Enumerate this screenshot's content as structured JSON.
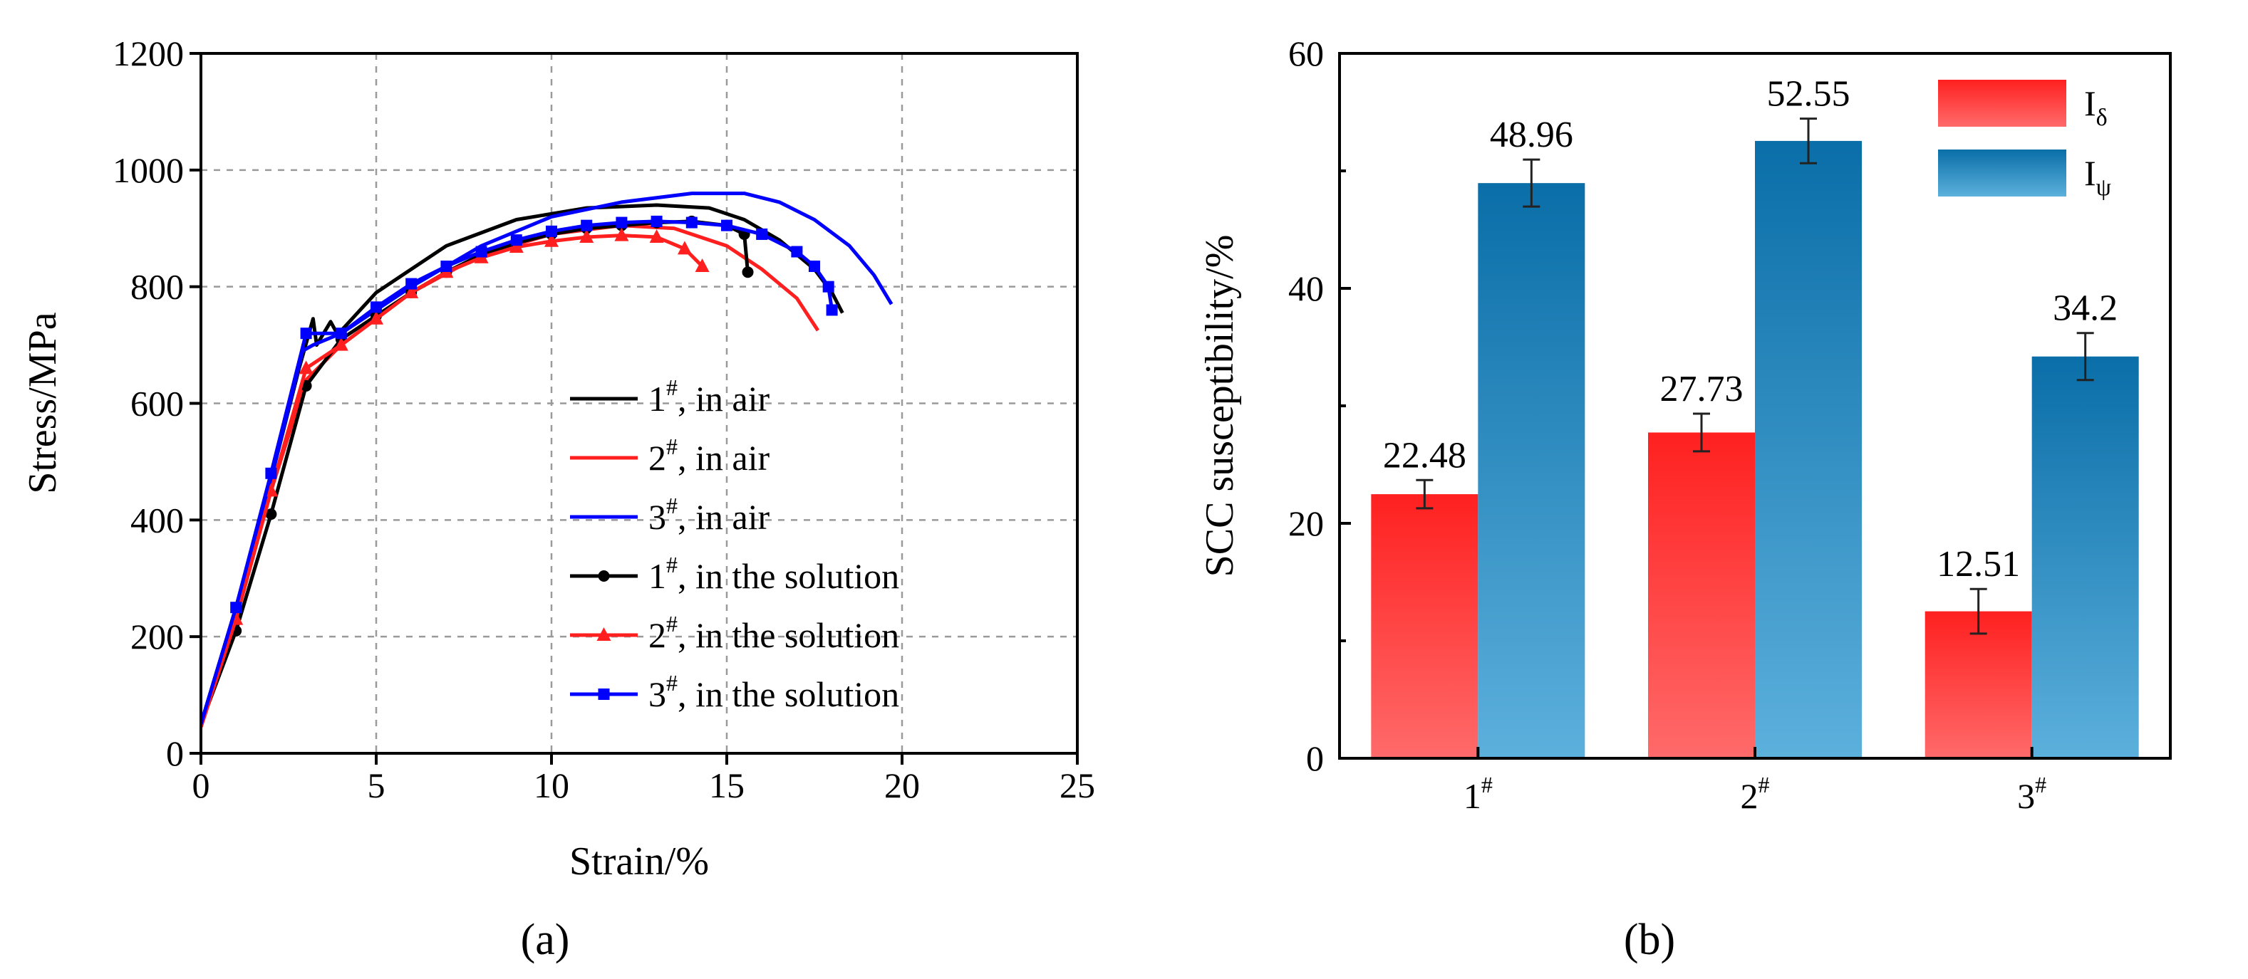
{
  "colors": {
    "black": "#000000",
    "red": "#ff1f1f",
    "blue": "#0000ff",
    "bar_red_top": "#ff2020",
    "bar_red_bottom": "#ff6a6a",
    "bar_blue_top": "#0a6ea8",
    "bar_blue_bottom": "#5cb0dc"
  },
  "chart_data": [
    {
      "panel_label": "(a)",
      "type": "line",
      "xlabel": "Strain/%",
      "ylabel": "Stress/MPa",
      "xlim": [
        0,
        25
      ],
      "ylim": [
        0,
        1200
      ],
      "xticks": [
        "0",
        "5",
        "10",
        "15",
        "20",
        "25"
      ],
      "yticks": [
        "0",
        "200",
        "400",
        "600",
        "800",
        "1000",
        "1200"
      ],
      "grid": true,
      "legend_position": "bottom-right",
      "series": [
        {
          "name": "1#, in air",
          "label_main": "1",
          "label_sup": "#",
          "label_rest": ", in air",
          "color": "#000000",
          "marker": "none",
          "x": [
            0,
            1,
            2,
            2.8,
            3.2,
            3.3,
            3.5,
            3.7,
            3.9,
            5,
            7,
            9,
            11,
            13,
            14.5,
            15.5,
            16.5,
            17.5,
            18,
            18.3
          ],
          "y": [
            50,
            250,
            470,
            660,
            745,
            700,
            720,
            740,
            718,
            790,
            870,
            915,
            935,
            940,
            935,
            915,
            880,
            830,
            790,
            755
          ]
        },
        {
          "name": "2#, in air",
          "label_main": "2",
          "label_sup": "#",
          "label_rest": ", in air",
          "color": "#ff1f1f",
          "marker": "none",
          "x": [
            0,
            1,
            2,
            3,
            4,
            6,
            8,
            10,
            12,
            13.5,
            15,
            16,
            17,
            17.6
          ],
          "y": [
            45,
            230,
            450,
            640,
            700,
            790,
            855,
            890,
            905,
            900,
            870,
            830,
            780,
            725
          ]
        },
        {
          "name": "3#, in air",
          "label_main": "3",
          "label_sup": "#",
          "label_rest": ", in air",
          "color": "#0000ff",
          "marker": "none",
          "x": [
            0,
            1,
            2,
            2.9,
            3.2,
            4,
            6,
            8,
            10,
            12,
            14,
            15.5,
            16.5,
            17.5,
            18.5,
            19.2,
            19.7
          ],
          "y": [
            50,
            250,
            470,
            690,
            700,
            720,
            800,
            870,
            920,
            945,
            960,
            960,
            945,
            915,
            870,
            820,
            770
          ]
        },
        {
          "name": "1#, in the solution",
          "label_main": "1",
          "label_sup": "#",
          "label_rest": ", in the solution",
          "color": "#000000",
          "marker": "circle",
          "x": [
            0,
            1,
            2,
            3,
            4,
            5,
            6,
            7,
            8,
            9,
            10,
            11,
            12,
            13,
            14,
            15,
            15.5,
            15.6
          ],
          "y": [
            50,
            210,
            410,
            630,
            710,
            750,
            790,
            825,
            855,
            875,
            890,
            900,
            905,
            910,
            912,
            905,
            890,
            825
          ]
        },
        {
          "name": "2#, in the solution",
          "label_main": "2",
          "label_sup": "#",
          "label_rest": ", in the solution",
          "color": "#ff1f1f",
          "marker": "triangle",
          "x": [
            0,
            1,
            2,
            3,
            4,
            5,
            6,
            7,
            8,
            9,
            10,
            11,
            12,
            13,
            13.8,
            14.3
          ],
          "y": [
            45,
            230,
            450,
            660,
            700,
            745,
            790,
            825,
            850,
            868,
            878,
            885,
            888,
            885,
            865,
            835
          ]
        },
        {
          "name": "3#, in the solution",
          "label_main": "3",
          "label_sup": "#",
          "label_rest": ", in the solution",
          "color": "#0000ff",
          "marker": "square",
          "x": [
            0,
            1,
            2,
            3,
            4,
            5,
            6,
            7,
            8,
            9,
            10,
            11,
            12,
            13,
            14,
            15,
            16,
            17,
            17.5,
            17.9,
            18
          ],
          "y": [
            50,
            250,
            480,
            720,
            720,
            765,
            805,
            835,
            860,
            880,
            895,
            905,
            910,
            912,
            910,
            905,
            890,
            860,
            835,
            800,
            760
          ]
        }
      ]
    },
    {
      "panel_label": "(b)",
      "type": "bar",
      "xlabel": "",
      "ylabel": "SCC susceptibility/%",
      "ylim": [
        0,
        60
      ],
      "yticks": [
        "0",
        "20",
        "40",
        "60"
      ],
      "grid": false,
      "legend_position": "top-right",
      "categories": [
        {
          "main": "1",
          "sup": "#"
        },
        {
          "main": "2",
          "sup": "#"
        },
        {
          "main": "3",
          "sup": "#"
        }
      ],
      "series": [
        {
          "name": "Iδ",
          "label_main": "I",
          "label_sub": "δ",
          "values": [
            22.48,
            27.73,
            12.51
          ],
          "errors": [
            1.2,
            1.6,
            1.9
          ],
          "data_labels": [
            "22.48",
            "27.73",
            "12.51"
          ]
        },
        {
          "name": "Iψ",
          "label_main": "I",
          "label_sub": "ψ",
          "values": [
            48.96,
            52.55,
            34.2
          ],
          "errors": [
            2.0,
            1.9,
            2.0
          ],
          "data_labels": [
            "48.96",
            "52.55",
            "34.2"
          ]
        }
      ]
    }
  ]
}
